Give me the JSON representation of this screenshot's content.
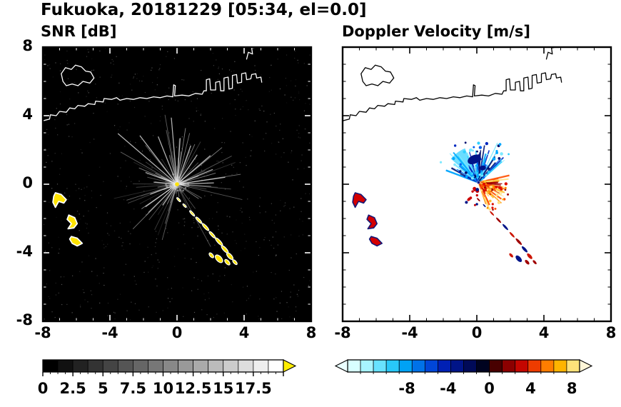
{
  "header": {
    "title": "Fukuoka, 20181229 [05:34, el=0.0]"
  },
  "panels": {
    "snr": {
      "subtitle": "SNR [dB]",
      "background": "#000000",
      "xlim": [
        -8,
        8
      ],
      "ylim": [
        -8,
        8
      ],
      "x_tick_values": [
        -8,
        -4,
        0,
        4,
        8
      ],
      "x_tick_labels": [
        "-8",
        "-4",
        "0",
        "4",
        "8"
      ],
      "y_tick_values": [
        8,
        4,
        0,
        -4,
        -8
      ],
      "y_tick_labels": [
        "8",
        "4",
        "0",
        "-4",
        "-8"
      ],
      "minor_tick_step": 1,
      "tick_color": "#ffffff"
    },
    "doppler": {
      "subtitle": "Doppler Velocity [m/s]",
      "background": "#ffffff",
      "xlim": [
        -8,
        8
      ],
      "ylim": [
        -8,
        8
      ],
      "x_tick_values": [
        -8,
        -4,
        0,
        4,
        8
      ],
      "x_tick_labels": [
        "-8",
        "-4",
        "0",
        "4",
        "8"
      ],
      "y_tick_values": [
        8,
        4,
        0,
        -4,
        -8
      ],
      "y_tick_labels": [],
      "minor_tick_step": 1,
      "tick_color": "#000000"
    }
  },
  "colorbars": {
    "snr": {
      "units": "dB",
      "range": [
        0,
        20
      ],
      "segments": 16,
      "gradient": [
        "#000000",
        "#ffffff"
      ],
      "tick_values": [
        0,
        2.5,
        5,
        7.5,
        10,
        12.5,
        15,
        17.5
      ],
      "tick_labels": [
        "0",
        "2.5",
        "5",
        "7.5",
        "10",
        "12.5",
        "15",
        "17.5"
      ],
      "overflow_arrow_color": "#ffee00"
    },
    "velocity": {
      "units": "m/s",
      "range": [
        -13.75,
        8.75
      ],
      "segment_colors": [
        "#d8ffff",
        "#a8f4ff",
        "#68e2ff",
        "#28c8fa",
        "#00a2f5",
        "#0072e8",
        "#0046d8",
        "#0020b4",
        "#001488",
        "#000a58",
        "#000320",
        "#480000",
        "#8c0000",
        "#c40600",
        "#ee3c00",
        "#ff7d00",
        "#ffb400",
        "#ffe27a"
      ],
      "tick_values": [
        -8,
        -4,
        0,
        4,
        8
      ],
      "tick_labels": [
        "-8",
        "-4",
        "0",
        "4",
        "8"
      ],
      "underflow_arrow_color": "#eaffff",
      "overflow_arrow_color": "#fff6d8"
    }
  },
  "chart_data": {
    "type": "heatmap",
    "title": "Fukuoka, 20181229 [05:34, el=0.0]",
    "station": "Fukuoka",
    "date": "20181229",
    "time": "05:34",
    "elevation_deg": 0.0,
    "panels": [
      {
        "name": "SNR",
        "units": "dB",
        "xlim": [
          -8,
          8
        ],
        "ylim": [
          -8,
          8
        ],
        "colormap_range": [
          0,
          20
        ],
        "background": "#000000",
        "notes": "Radial ground-clutter streaks emanate from the radar at the origin; strong yellow (>17.5 dB) echoes form three patches near x=-7.4..-5.6, y=-0.5..-3.6 and a dashed diagonal band from (0.1,-0.9) to (3.5,-4.6); white coastline overlay across the top."
      },
      {
        "name": "Doppler Velocity",
        "units": "m/s",
        "xlim": [
          -8,
          8
        ],
        "ylim": [
          -8,
          8
        ],
        "colormap_range": [
          -13.75,
          8.75
        ],
        "background": "#ffffff",
        "notes": "Velocity couplet at the origin: cyan/blue (negative, toward) fan over up-left to up-right azimuths, orange/red (positive, away) fan toward lower-right; the same coastal echo patches as the SNR panel appear red with dark-blue rims; black coastline overlay."
      }
    ],
    "coastline_km": {
      "mainland": [
        [
          -8,
          3.7
        ],
        [
          -7.6,
          3.8
        ],
        [
          -7.55,
          4.05
        ],
        [
          -7.2,
          4.0
        ],
        [
          -7.0,
          4.25
        ],
        [
          -6.6,
          4.2
        ],
        [
          -6.4,
          4.45
        ],
        [
          -6.1,
          4.4
        ],
        [
          -5.9,
          4.6
        ],
        [
          -5.5,
          4.55
        ],
        [
          -5.3,
          4.7
        ],
        [
          -4.9,
          4.65
        ],
        [
          -4.85,
          4.85
        ],
        [
          -4.4,
          4.8
        ],
        [
          -4.35,
          5.0
        ],
        [
          -3.9,
          4.95
        ],
        [
          -3.6,
          5.05
        ],
        [
          -3.4,
          4.9
        ],
        [
          -3.0,
          5.0
        ],
        [
          -2.6,
          4.95
        ],
        [
          -2.2,
          5.05
        ],
        [
          -1.8,
          5.0
        ],
        [
          -1.4,
          5.1
        ],
        [
          -1.0,
          5.05
        ],
        [
          -0.6,
          5.15
        ],
        [
          -0.25,
          5.1
        ],
        [
          -0.2,
          5.8
        ],
        [
          -0.1,
          5.75
        ],
        [
          -0.15,
          5.15
        ],
        [
          0.3,
          5.2
        ],
        [
          0.7,
          5.15
        ],
        [
          1.1,
          5.3
        ],
        [
          1.5,
          5.25
        ],
        [
          1.6,
          5.45
        ],
        [
          1.75,
          5.45
        ],
        [
          1.75,
          6.1
        ],
        [
          1.95,
          6.15
        ],
        [
          2.0,
          5.5
        ],
        [
          2.3,
          5.5
        ],
        [
          2.3,
          5.95
        ],
        [
          2.55,
          6.0
        ],
        [
          2.6,
          5.45
        ],
        [
          2.8,
          5.45
        ],
        [
          2.8,
          6.2
        ],
        [
          3.05,
          6.25
        ],
        [
          3.1,
          5.55
        ],
        [
          3.3,
          5.6
        ],
        [
          3.3,
          6.35
        ],
        [
          3.55,
          6.4
        ],
        [
          3.6,
          5.9
        ],
        [
          3.85,
          5.95
        ],
        [
          3.85,
          6.45
        ],
        [
          4.1,
          6.5
        ],
        [
          4.15,
          6.1
        ],
        [
          4.4,
          6.15
        ],
        [
          4.45,
          6.4
        ],
        [
          4.7,
          6.45
        ],
        [
          4.75,
          6.2
        ],
        [
          5.0,
          6.25
        ],
        [
          5.05,
          5.95
        ]
      ],
      "island": [
        [
          -6.8,
          6.0
        ],
        [
          -6.9,
          6.45
        ],
        [
          -6.65,
          6.8
        ],
        [
          -6.3,
          6.7
        ],
        [
          -6.05,
          6.95
        ],
        [
          -5.7,
          6.85
        ],
        [
          -5.45,
          6.6
        ],
        [
          -5.15,
          6.55
        ],
        [
          -4.95,
          6.2
        ],
        [
          -5.2,
          5.9
        ],
        [
          -5.6,
          6.0
        ],
        [
          -5.9,
          5.75
        ],
        [
          -6.25,
          5.85
        ],
        [
          -6.6,
          5.75
        ],
        [
          -6.8,
          6.0
        ]
      ],
      "top_right_islet": [
        [
          4.15,
          7.3
        ],
        [
          4.25,
          7.7
        ],
        [
          4.5,
          7.6
        ],
        [
          4.45,
          7.95
        ],
        [
          4.7,
          8.0
        ]
      ]
    },
    "snr_echoes": {
      "strong_color": "#ffe400",
      "fringe_color": "#ffffff",
      "left_cluster_polygons": [
        [
          [
            -7.25,
            -0.5
          ],
          [
            -6.9,
            -0.6
          ],
          [
            -6.6,
            -0.9
          ],
          [
            -6.75,
            -1.1
          ],
          [
            -7.05,
            -1.0
          ],
          [
            -7.25,
            -1.35
          ],
          [
            -7.4,
            -1.05
          ],
          [
            -7.35,
            -0.7
          ]
        ],
        [
          [
            -6.45,
            -1.8
          ],
          [
            -6.1,
            -1.95
          ],
          [
            -5.95,
            -2.3
          ],
          [
            -6.15,
            -2.55
          ],
          [
            -6.5,
            -2.6
          ],
          [
            -6.3,
            -2.3
          ],
          [
            -6.55,
            -2.05
          ]
        ],
        [
          [
            -6.3,
            -3.05
          ],
          [
            -5.95,
            -3.15
          ],
          [
            -5.65,
            -3.45
          ],
          [
            -5.95,
            -3.6
          ],
          [
            -6.25,
            -3.45
          ],
          [
            -6.4,
            -3.2
          ]
        ]
      ],
      "diagonal_chain_ellipses": [
        [
          0.1,
          -0.9,
          0.16,
          0.05
        ],
        [
          0.45,
          -1.25,
          0.14,
          0.045
        ],
        [
          0.9,
          -1.7,
          0.21,
          0.055
        ],
        [
          1.3,
          -2.1,
          0.25,
          0.065
        ],
        [
          1.7,
          -2.5,
          0.28,
          0.075
        ],
        [
          2.1,
          -2.95,
          0.25,
          0.07
        ],
        [
          2.5,
          -3.35,
          0.3,
          0.085
        ],
        [
          2.85,
          -3.8,
          0.28,
          0.095
        ],
        [
          3.15,
          -4.2,
          0.25,
          0.11
        ],
        [
          3.45,
          -4.55,
          0.18,
          0.08
        ],
        [
          2.5,
          -4.35,
          0.28,
          0.15
        ],
        [
          2.05,
          -4.15,
          0.18,
          0.09
        ],
        [
          3.0,
          -4.55,
          0.2,
          0.1
        ]
      ],
      "chain_angle_deg": -47,
      "bright_rays": [
        [
          140,
          4.6
        ],
        [
          128,
          3.6
        ],
        [
          112,
          3.0
        ],
        [
          95,
          3.9
        ],
        [
          86,
          2.7
        ],
        [
          70,
          2.4
        ],
        [
          55,
          2.1
        ],
        [
          40,
          2.6
        ],
        [
          22,
          2.3
        ],
        [
          8,
          2.9
        ],
        [
          2,
          2.2
        ],
        [
          215,
          2.3
        ],
        [
          200,
          1.7
        ],
        [
          235,
          1.5
        ],
        [
          160,
          2.0
        ],
        [
          175,
          1.4
        ]
      ],
      "clutter_rays": {
        "count": 130,
        "max_range_km": 4.2
      },
      "noise_speckle_count": 650
    },
    "velocity_echoes": {
      "left_cluster_fill": "#d40000",
      "left_cluster_rim": "#141a78",
      "chain_colors": [
        "#a00000",
        "#001488",
        "#cc1400"
      ],
      "center_km": [
        0.1,
        0.1
      ],
      "toward_sector_deg": [
        40,
        160
      ],
      "toward_colors": [
        "#7fe9ff",
        "#2fd0ff",
        "#00a8ff",
        "#0060f0",
        "#0028c0",
        "#001070"
      ],
      "away_sector_deg": [
        -72,
        13
      ],
      "away_colors": [
        "#ffe080",
        "#ffc030",
        "#ff9000",
        "#ff5000",
        "#e01000",
        "#a00000"
      ],
      "cyan_wedge": {
        "a0": 112,
        "a1": 140,
        "r0": 0.45,
        "r1": 2.15,
        "color": "#45d4ff"
      },
      "yellow_wedge": {
        "a0": -30,
        "a1": -8,
        "r0": 0.3,
        "r1": 1.55,
        "color": "#ffe9a0"
      },
      "navy_clumps": [
        [
          -0.15,
          1.45,
          0.42,
          0.25,
          -25
        ],
        [
          0.35,
          0.95,
          0.2,
          0.14,
          -10
        ]
      ],
      "red_cluster_center": [
        -0.3,
        -0.75
      ],
      "max_range_km": 2.6
    }
  }
}
